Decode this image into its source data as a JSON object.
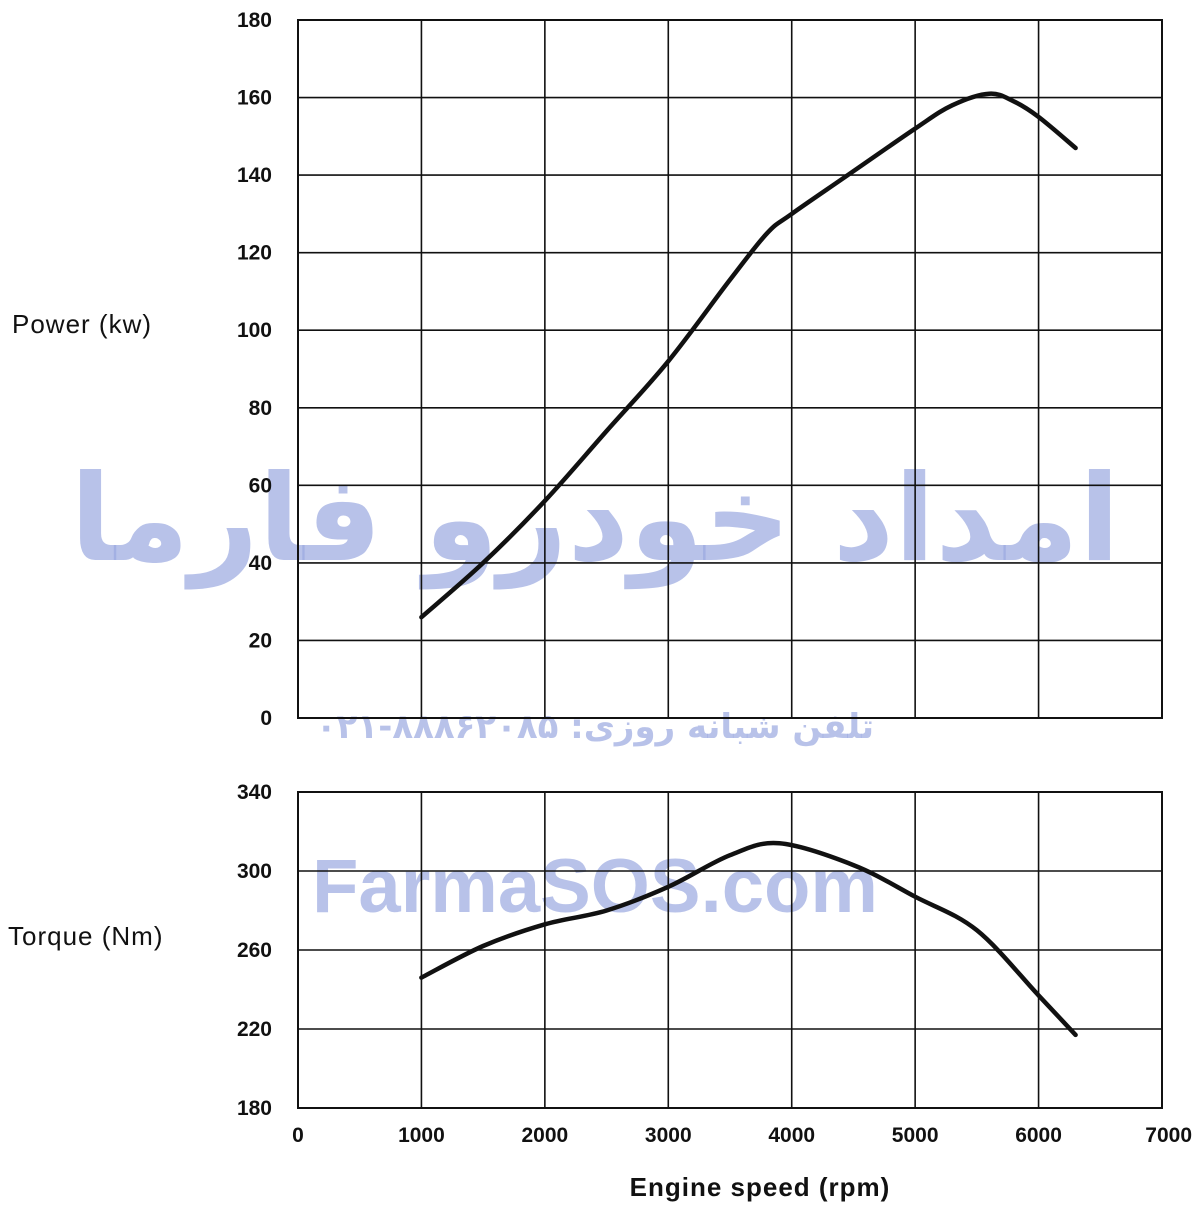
{
  "chart_data": [
    {
      "type": "line",
      "ylabel": "Power  (kw)",
      "xlim": [
        0,
        7000
      ],
      "ylim": [
        0,
        180
      ],
      "xticks": [
        "0",
        "1000",
        "2000",
        "3000",
        "4000",
        "5000",
        "6000",
        "7000"
      ],
      "yticks": [
        "0",
        "20",
        "40",
        "60",
        "80",
        "100",
        "120",
        "140",
        "160",
        "180"
      ],
      "grid": true,
      "series": [
        {
          "x": [
            1000,
            1500,
            2000,
            2500,
            3000,
            3500,
            3800,
            4000,
            4500,
            5000,
            5300,
            5600,
            5800,
            6000,
            6300
          ],
          "values": [
            26,
            40,
            56,
            74,
            92,
            113,
            125,
            130,
            141,
            152,
            158,
            161,
            159,
            155,
            147
          ]
        }
      ]
    },
    {
      "type": "line",
      "ylabel": "Torque  (Nm)",
      "xlabel": "Engine  speed  (rpm)",
      "xlim": [
        0,
        7000
      ],
      "ylim": [
        180,
        340
      ],
      "xticks": [
        "0",
        "1000",
        "2000",
        "3000",
        "4000",
        "5000",
        "6000",
        "7000"
      ],
      "yticks": [
        "180",
        "220",
        "260",
        "300",
        "340"
      ],
      "grid": true,
      "series": [
        {
          "x": [
            1000,
            1500,
            2000,
            2500,
            3000,
            3500,
            3900,
            4500,
            5000,
            5500,
            6000,
            6300
          ],
          "values": [
            246,
            262,
            273,
            280,
            292,
            308,
            314,
            303,
            287,
            270,
            237,
            217
          ]
        }
      ]
    }
  ],
  "watermark": {
    "persian_name": "امداد خودرو فارما",
    "phone": "تلفن شبانه روزی: ۸۸۸۶۲۰۸۵-۰۲۱",
    "site": "FarmaSOS.com",
    "color": "#9aa8e0"
  },
  "colors": {
    "line": "#111111",
    "grid": "#111111",
    "background": "#ffffff"
  }
}
